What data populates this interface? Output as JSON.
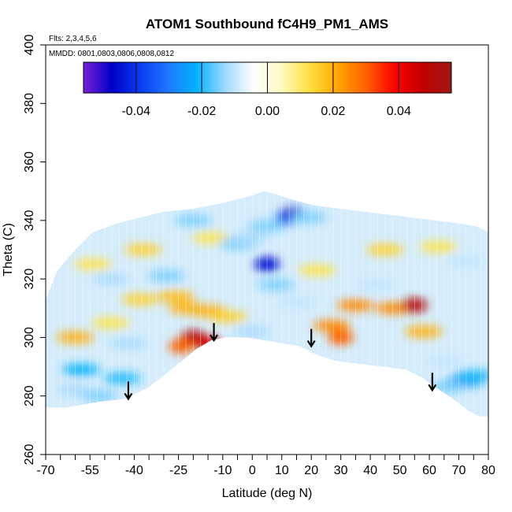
{
  "chart_data": {
    "type": "heatmap",
    "title": "ATOM1 Southbound fC4H9_PM1_AMS",
    "flights_note": "Flts: 2,3,4,5,6",
    "dates_note": "MMDD: 0801,0803,0806,0808,0812",
    "xlabel": "Latitude (deg N)",
    "ylabel": "Theta (C)",
    "xlim": [
      -70,
      80
    ],
    "ylim": [
      260,
      400
    ],
    "x_tick_labels": [
      "-70",
      "-55",
      "-40",
      "-25",
      "-10",
      "0",
      "10",
      "20",
      "30",
      "40",
      "50",
      "60",
      "70",
      "80"
    ],
    "x_tick_values": [
      -70,
      -55,
      -40,
      -25,
      -10,
      0,
      10,
      20,
      30,
      40,
      50,
      60,
      70,
      80
    ],
    "x_minor_ticks": [
      -65,
      -60,
      -50,
      -45,
      -35,
      -30,
      -20,
      -15,
      -5,
      5,
      15,
      25,
      35,
      45,
      55,
      65,
      75
    ],
    "y_tick_labels": [
      "260",
      "280",
      "300",
      "320",
      "340",
      "360",
      "380",
      "400"
    ],
    "y_tick_values": [
      260,
      280,
      300,
      320,
      340,
      360,
      380,
      400
    ],
    "colorbar": {
      "range": [
        -0.056,
        0.056
      ],
      "tick_labels": [
        "-0.04",
        "-0.02",
        "0.00",
        "0.02",
        "0.04"
      ],
      "tick_values": [
        -0.04,
        -0.02,
        0.0,
        0.02,
        0.04
      ],
      "colors": [
        "#7a1fd6",
        "#0000c8",
        "#0a3cf0",
        "#1e78ff",
        "#00b4ff",
        "#a0d8ff",
        "#ffffff",
        "#fffac0",
        "#ffe040",
        "#ffa500",
        "#ff6000",
        "#ff0000",
        "#c00000",
        "#a01818"
      ]
    },
    "data_lower_boundary": [
      [
        -70,
        276
      ],
      [
        -63,
        276
      ],
      [
        -52,
        278
      ],
      [
        -43,
        279
      ],
      [
        -35,
        283
      ],
      [
        -25,
        291
      ],
      [
        -19,
        296
      ],
      [
        -14,
        299
      ],
      [
        -9,
        300
      ],
      [
        -2,
        300
      ],
      [
        4,
        299
      ],
      [
        10,
        298
      ],
      [
        16,
        297
      ],
      [
        22,
        294
      ],
      [
        28,
        292
      ],
      [
        36,
        291
      ],
      [
        44,
        290
      ],
      [
        52,
        289
      ],
      [
        58,
        286
      ],
      [
        62,
        283
      ],
      [
        68,
        279
      ],
      [
        73,
        275
      ],
      [
        77,
        273
      ],
      [
        80,
        273
      ]
    ],
    "data_upper_boundary": [
      [
        -70,
        313
      ],
      [
        -66,
        323
      ],
      [
        -60,
        330
      ],
      [
        -54,
        336
      ],
      [
        -46,
        339
      ],
      [
        -38,
        341
      ],
      [
        -30,
        343
      ],
      [
        -20,
        344
      ],
      [
        -10,
        346
      ],
      [
        -2,
        348
      ],
      [
        4,
        350
      ],
      [
        8,
        349
      ],
      [
        14,
        347
      ],
      [
        22,
        345
      ],
      [
        30,
        344
      ],
      [
        38,
        343
      ],
      [
        46,
        342
      ],
      [
        54,
        341
      ],
      [
        62,
        340
      ],
      [
        70,
        339
      ],
      [
        76,
        338
      ],
      [
        80,
        336
      ]
    ],
    "anomalies": [
      {
        "lat": -20,
        "theta": 300,
        "value": 0.05
      },
      {
        "lat": -15,
        "theta": 298,
        "value": 0.045
      },
      {
        "lat": -24,
        "theta": 297,
        "value": 0.03
      },
      {
        "lat": -22,
        "theta": 310,
        "value": 0.02
      },
      {
        "lat": -26,
        "theta": 314,
        "value": 0.018
      },
      {
        "lat": -15,
        "theta": 309,
        "value": 0.02
      },
      {
        "lat": -8,
        "theta": 307,
        "value": 0.015
      },
      {
        "lat": -60,
        "theta": 300,
        "value": 0.02
      },
      {
        "lat": -48,
        "theta": 305,
        "value": 0.012
      },
      {
        "lat": -38,
        "theta": 313,
        "value": 0.015
      },
      {
        "lat": -54,
        "theta": 325,
        "value": 0.012
      },
      {
        "lat": -37,
        "theta": 330,
        "value": 0.015
      },
      {
        "lat": -14,
        "theta": 334,
        "value": 0.012
      },
      {
        "lat": 30,
        "theta": 300,
        "value": 0.03
      },
      {
        "lat": 27,
        "theta": 304,
        "value": 0.025
      },
      {
        "lat": 35,
        "theta": 311,
        "value": 0.025
      },
      {
        "lat": 48,
        "theta": 310,
        "value": 0.025
      },
      {
        "lat": 58,
        "theta": 302,
        "value": 0.02
      },
      {
        "lat": 55,
        "theta": 311,
        "value": 0.05
      },
      {
        "lat": 45,
        "theta": 330,
        "value": 0.015
      },
      {
        "lat": 63,
        "theta": 331,
        "value": 0.012
      },
      {
        "lat": 22,
        "theta": 323,
        "value": 0.012
      },
      {
        "lat": 72,
        "theta": 326,
        "value": -0.01
      },
      {
        "lat": -58,
        "theta": 289,
        "value": -0.022
      },
      {
        "lat": -44,
        "theta": 286,
        "value": -0.02
      },
      {
        "lat": -52,
        "theta": 280,
        "value": -0.015
      },
      {
        "lat": -60,
        "theta": 282,
        "value": -0.012
      },
      {
        "lat": -42,
        "theta": 298,
        "value": -0.012
      },
      {
        "lat": -48,
        "theta": 320,
        "value": -0.012
      },
      {
        "lat": -29,
        "theta": 321,
        "value": -0.015
      },
      {
        "lat": -5,
        "theta": 332,
        "value": -0.015
      },
      {
        "lat": 5,
        "theta": 338,
        "value": -0.015
      },
      {
        "lat": -1,
        "theta": 334,
        "value": -0.012
      },
      {
        "lat": 5,
        "theta": 325,
        "value": -0.045
      },
      {
        "lat": 8,
        "theta": 318,
        "value": -0.015
      },
      {
        "lat": 15,
        "theta": 312,
        "value": -0.01
      },
      {
        "lat": 12,
        "theta": 341,
        "value": -0.03
      },
      {
        "lat": 14,
        "theta": 342,
        "value": -0.05
      },
      {
        "lat": 19,
        "theta": 341,
        "value": -0.015
      },
      {
        "lat": -20,
        "theta": 340,
        "value": -0.015
      },
      {
        "lat": 0,
        "theta": 302,
        "value": -0.012
      },
      {
        "lat": 42,
        "theta": 318,
        "value": -0.01
      },
      {
        "lat": 72,
        "theta": 285,
        "value": -0.025
      },
      {
        "lat": 75,
        "theta": 287,
        "value": -0.02
      },
      {
        "lat": 66,
        "theta": 283,
        "value": -0.015
      },
      {
        "lat": 65,
        "theta": 292,
        "value": -0.01
      },
      {
        "lat": 60,
        "theta": 320,
        "value": -0.008
      }
    ],
    "arrows": [
      {
        "lat": -42,
        "theta": 279
      },
      {
        "lat": -13,
        "theta": 299
      },
      {
        "lat": 20,
        "theta": 297
      },
      {
        "lat": 61,
        "theta": 282
      }
    ]
  }
}
